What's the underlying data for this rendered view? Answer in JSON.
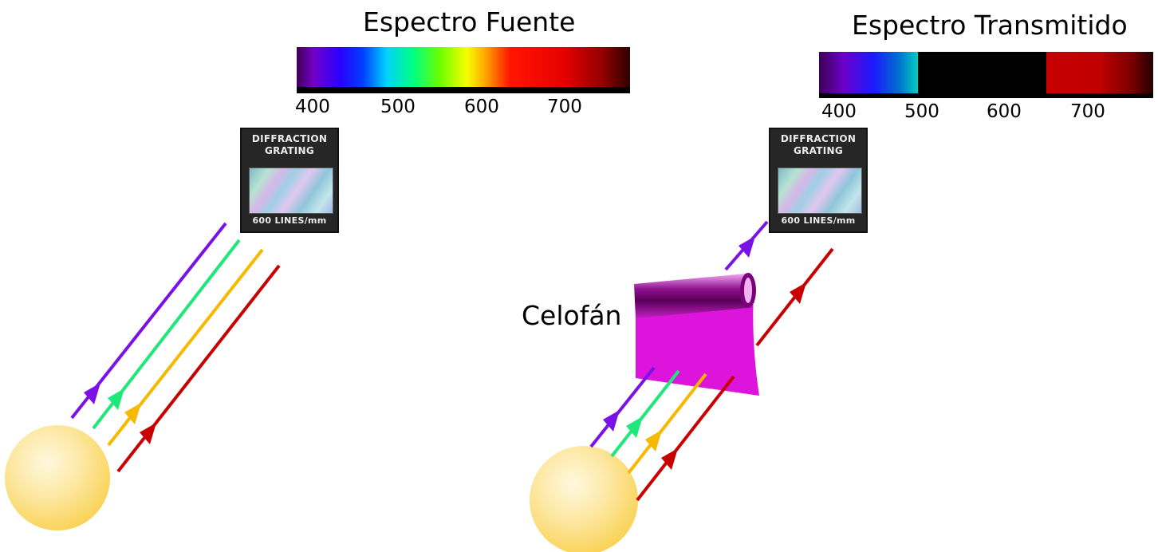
{
  "left_panel": {
    "title": "Espectro Fuente",
    "ticks": [
      "400",
      "500",
      "600",
      "700"
    ],
    "grating": {
      "line1": "DIFFRACTION",
      "line2": "GRATING",
      "line3": "600  LINES/mm"
    }
  },
  "right_panel": {
    "title": "Espectro Transmitido",
    "ticks": [
      "400",
      "500",
      "600",
      "700"
    ],
    "grating": {
      "line1": "DIFFRACTION",
      "line2": "GRATING",
      "line3": "600  LINES/mm"
    },
    "filter_label": "Celofán"
  },
  "colors": {
    "violet": "#7a12e8",
    "green": "#1ee87a",
    "yellow": "#f7b800",
    "red": "#c90000",
    "sun": "#fbd75f",
    "cellophane": "#dc14dc"
  }
}
